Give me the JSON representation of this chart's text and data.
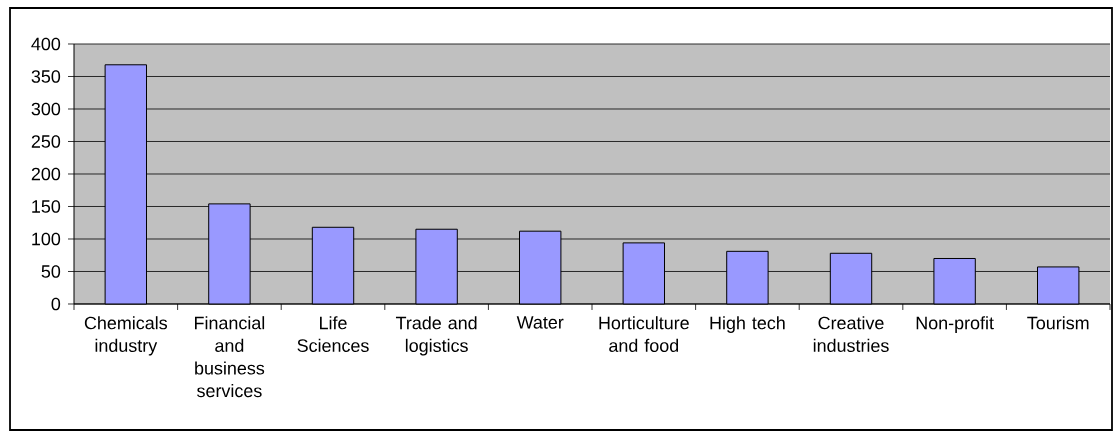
{
  "chart_data": {
    "type": "bar",
    "categories": [
      "Chemicals industry",
      "Financial and business services",
      "Life Sciences",
      "Trade and logistics",
      "Water",
      "Horticulture and food",
      "High tech",
      "Creative industries",
      "Non-profit",
      "Tourism"
    ],
    "values": [
      368,
      154,
      118,
      115,
      112,
      94,
      81,
      78,
      70,
      57
    ],
    "color": "#9999ff",
    "ylim": [
      0,
      400
    ],
    "yticks": [
      0,
      50,
      100,
      150,
      200,
      250,
      300,
      350,
      400
    ],
    "grid": "y"
  }
}
